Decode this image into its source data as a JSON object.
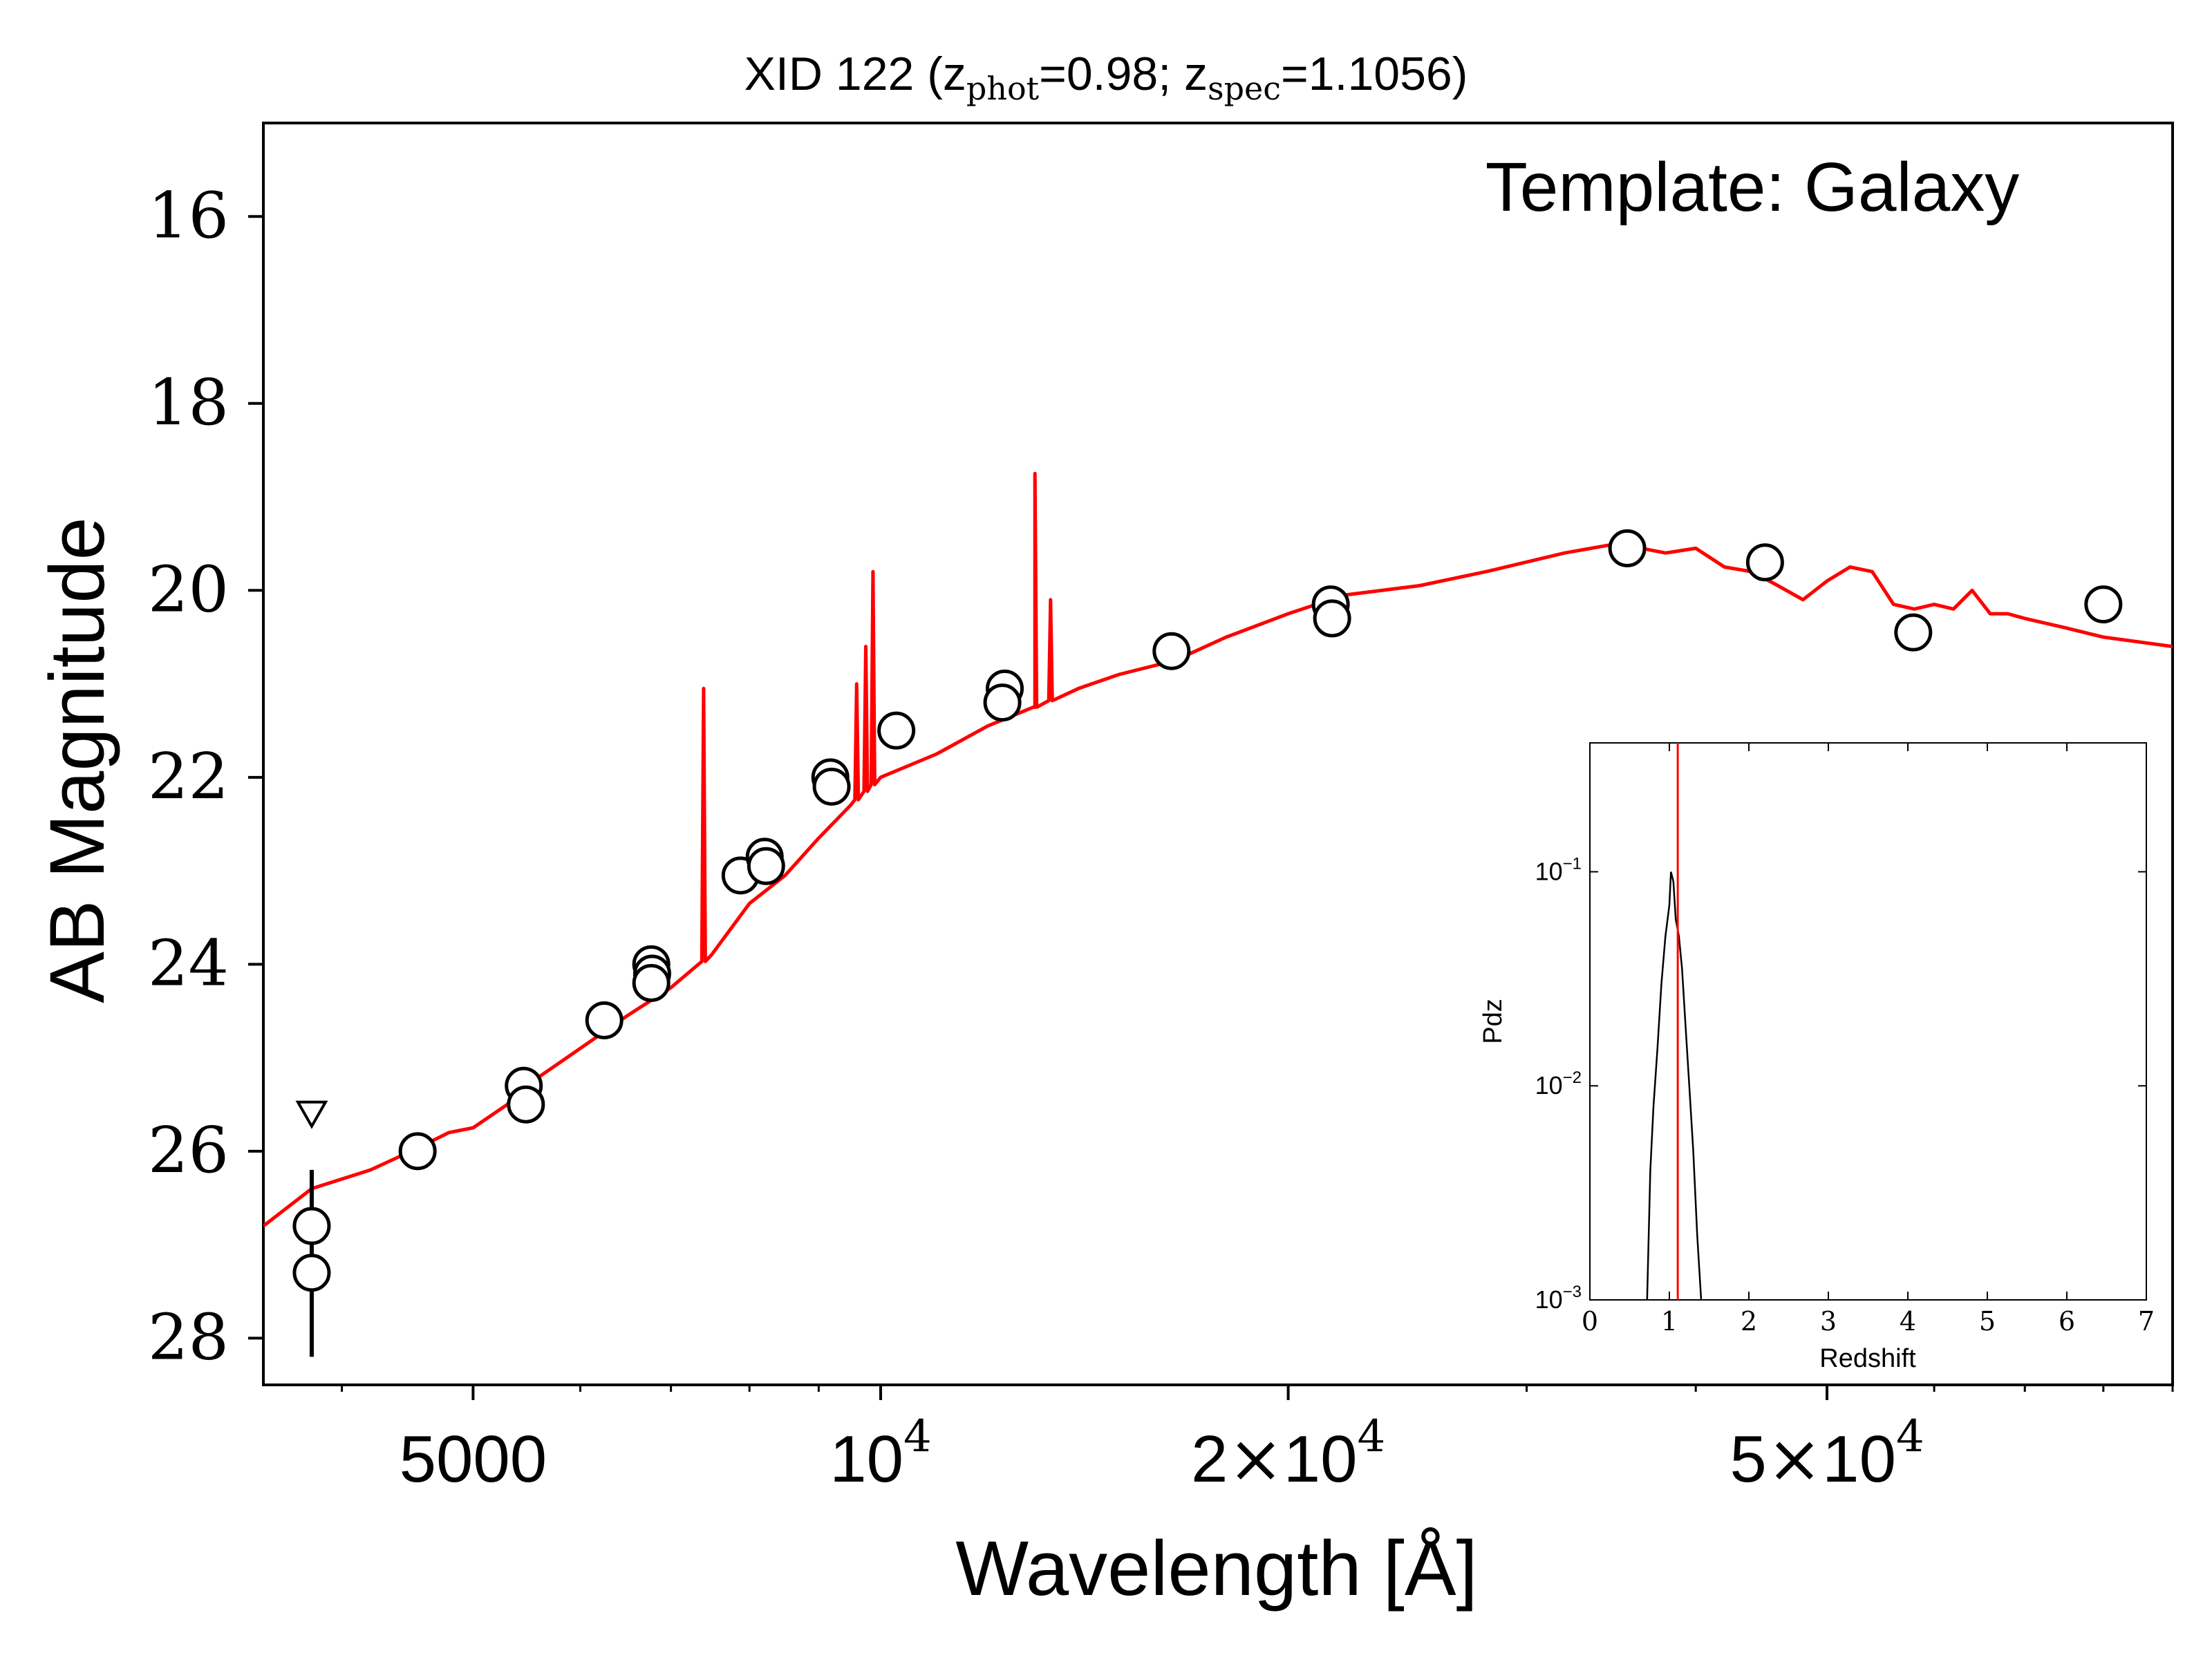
{
  "chart_data": [
    {
      "type": "scatter",
      "title_parts": [
        "XID 122 (z",
        "phot",
        "=0.98; z",
        "spec",
        "=1.1056)"
      ],
      "annotation": "Template: Galaxy",
      "xlabel": "Wavelength [Å]",
      "ylabel": "AB Magnitude",
      "x_scale": "log",
      "y_inverted": true,
      "xlim": [
        3500,
        90000
      ],
      "ylim": [
        28.5,
        15
      ],
      "y_ticks": [
        "16",
        "18",
        "20",
        "22",
        "24",
        "26",
        "28"
      ],
      "x_ticks": [
        {
          "value": 5000,
          "label": "5000"
        },
        {
          "value": 10000,
          "base": "10",
          "exp": "4"
        },
        {
          "value": 20000,
          "mant": "2",
          "times": "×",
          "base": "10",
          "exp": "4"
        },
        {
          "value": 50000,
          "mant": "5",
          "times": "×",
          "base": "10",
          "exp": "4"
        }
      ],
      "series": [
        {
          "kind": "photometry",
          "color": "#000000",
          "points": [
            {
              "x": 3800,
              "y": 26.8
            },
            {
              "x": 3800,
              "y": 27.3,
              "err": [
                26.2,
                28.2
              ]
            },
            {
              "x": 4550,
              "y": 26.0
            },
            {
              "x": 5450,
              "y": 25.3
            },
            {
              "x": 5470,
              "y": 25.5
            },
            {
              "x": 6250,
              "y": 24.6
            },
            {
              "x": 6770,
              "y": 24.0
            },
            {
              "x": 6780,
              "y": 24.1
            },
            {
              "x": 6770,
              "y": 24.2
            },
            {
              "x": 7880,
              "y": 23.05
            },
            {
              "x": 8210,
              "y": 22.85
            },
            {
              "x": 8230,
              "y": 22.95
            },
            {
              "x": 9180,
              "y": 22.0
            },
            {
              "x": 9200,
              "y": 22.1
            },
            {
              "x": 10270,
              "y": 21.5
            },
            {
              "x": 12350,
              "y": 21.05
            },
            {
              "x": 12300,
              "y": 21.2
            },
            {
              "x": 16400,
              "y": 20.65
            },
            {
              "x": 21500,
              "y": 20.15
            },
            {
              "x": 21550,
              "y": 20.3
            },
            {
              "x": 35600,
              "y": 19.55
            },
            {
              "x": 45000,
              "y": 19.7
            },
            {
              "x": 57900,
              "y": 20.45
            },
            {
              "x": 80000,
              "y": 20.15
            }
          ],
          "upper_limits": [
            {
              "x": 3800,
              "y": 25.6
            }
          ]
        },
        {
          "kind": "template",
          "color": "#ff0000",
          "x": [
            3500,
            3800,
            4200,
            4500,
            4800,
            5000,
            5300,
            5450,
            5600,
            6000,
            6500,
            7000,
            7500,
            8000,
            8500,
            9000,
            9500,
            10000,
            11000,
            12000,
            13000,
            14000,
            15000,
            16500,
            18000,
            20000,
            22000,
            25000,
            28000,
            32000,
            35000,
            38000,
            40000,
            42000,
            44000,
            46000,
            48000,
            50000,
            52000,
            54000,
            56000,
            58000,
            60000,
            62000,
            64000,
            66000,
            68000,
            70000,
            75000,
            80000,
            90000
          ],
          "y": [
            26.8,
            26.4,
            26.2,
            26.0,
            25.8,
            25.75,
            25.5,
            25.3,
            25.2,
            24.9,
            24.55,
            24.25,
            23.9,
            23.35,
            23.05,
            22.65,
            22.3,
            22.0,
            21.75,
            21.45,
            21.25,
            21.05,
            20.9,
            20.75,
            20.5,
            20.25,
            20.05,
            19.95,
            19.8,
            19.6,
            19.5,
            19.6,
            19.55,
            19.75,
            19.8,
            19.95,
            20.1,
            19.9,
            19.75,
            19.8,
            20.15,
            20.2,
            20.15,
            20.2,
            20.0,
            20.25,
            20.25,
            20.3,
            20.4,
            20.5,
            20.6
          ],
          "emission_lines": [
            {
              "x": 7400,
              "y": 21.05
            },
            {
              "x": 9600,
              "y": 21.0
            },
            {
              "x": 9750,
              "y": 20.6
            },
            {
              "x": 9870,
              "y": 19.8
            },
            {
              "x": 13000,
              "y": 18.75
            },
            {
              "x": 13350,
              "y": 20.1
            }
          ]
        }
      ]
    },
    {
      "type": "line",
      "xlabel": "Redshift",
      "ylabel": "Pdz",
      "y_scale": "log",
      "xlim": [
        0,
        7
      ],
      "ylim": [
        0.001,
        0.4
      ],
      "x_ticks": [
        "0",
        "1",
        "2",
        "3",
        "4",
        "5",
        "6",
        "7"
      ],
      "y_ticks": [
        {
          "value": 0.1,
          "base": "10",
          "exp": "−1"
        },
        {
          "value": 0.01,
          "base": "10",
          "exp": "−2"
        },
        {
          "value": 0.001,
          "base": "10",
          "exp": "−3"
        }
      ],
      "series": [
        {
          "color": "#000000",
          "x": [
            0.72,
            0.74,
            0.76,
            0.8,
            0.85,
            0.9,
            0.95,
            1.0,
            1.02,
            1.05,
            1.08,
            1.12,
            1.16,
            1.2,
            1.25,
            1.3,
            1.35,
            1.4
          ],
          "y": [
            0.001,
            0.002,
            0.004,
            0.008,
            0.015,
            0.03,
            0.05,
            0.07,
            0.1,
            0.09,
            0.06,
            0.05,
            0.035,
            0.02,
            0.01,
            0.005,
            0.002,
            0.001
          ]
        }
      ],
      "vline": {
        "x": 1.1056,
        "color": "#ff0000"
      }
    }
  ]
}
